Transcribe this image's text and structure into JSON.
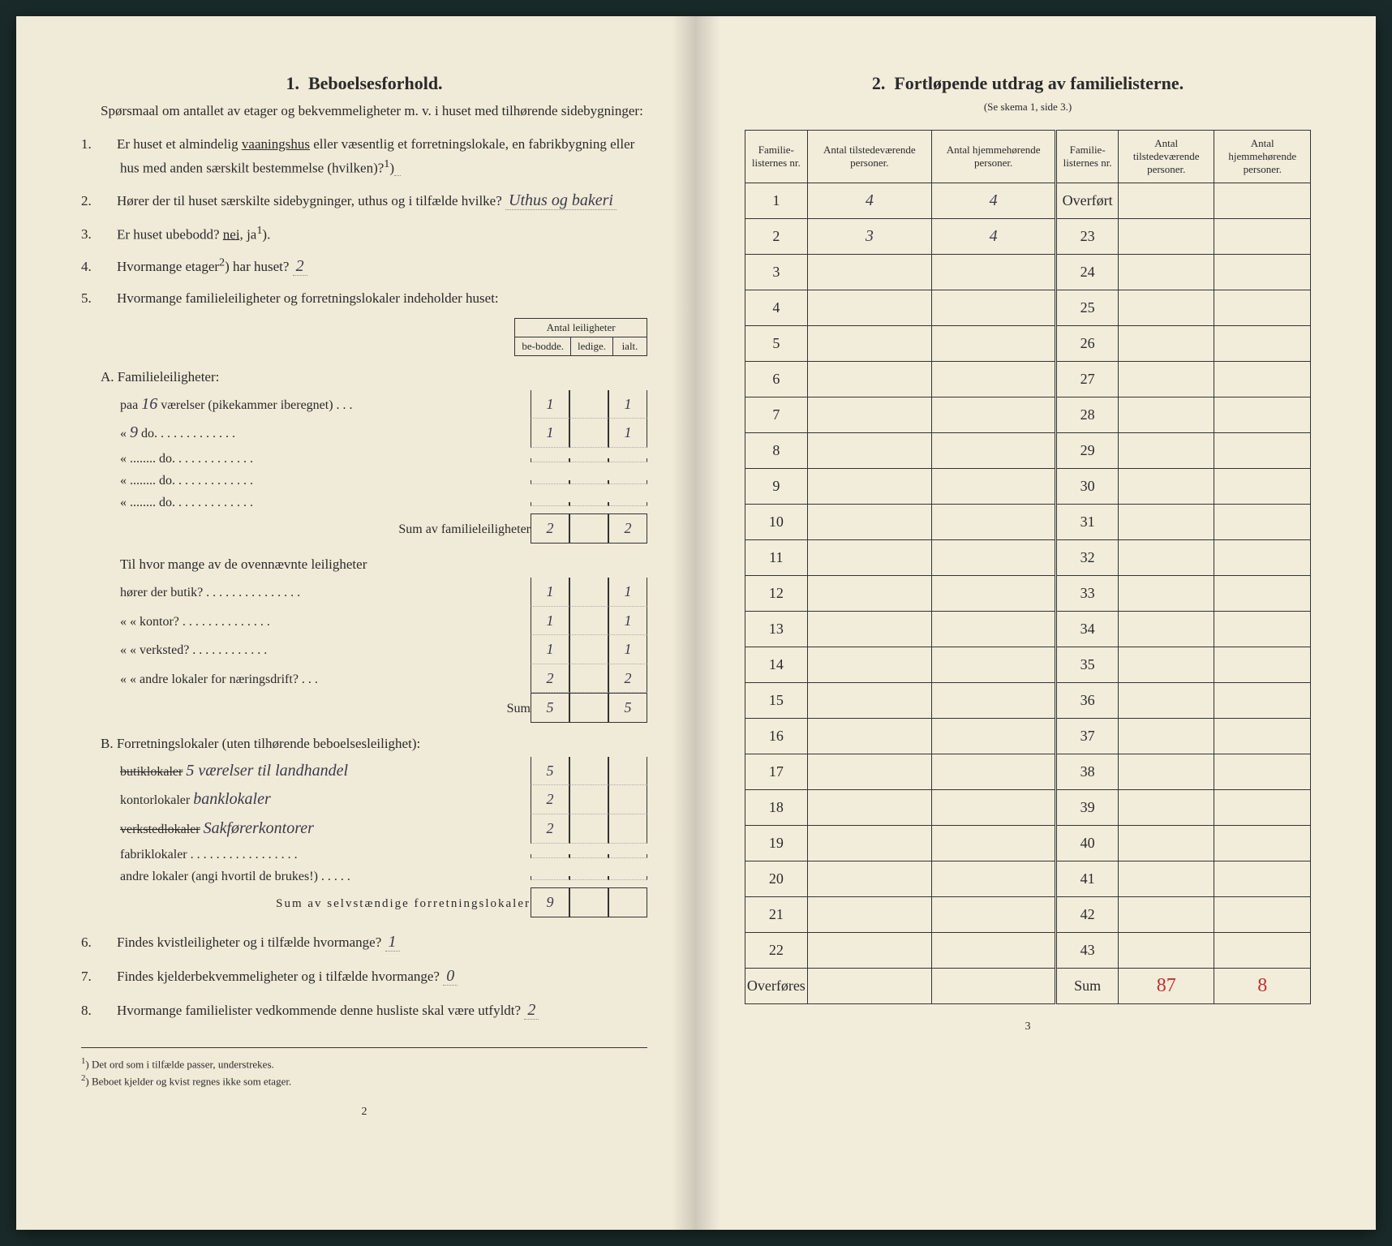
{
  "left": {
    "heading_num": "1.",
    "heading": "Beboelsesforhold.",
    "intro": "Spørsmaal om antallet av etager og bekvemmeligheter m. v. i huset med tilhørende sidebygninger:",
    "q1_num": "1.",
    "q1": "Er huset et almindelig ",
    "q1_underlined": "vaaningshus",
    "q1_rest": " eller væsentlig et forretningslokale, en fabrikbygning eller hus med anden særskilt bestemmelse (hvilken)?",
    "q1_sup": "1",
    "q1_blank": "",
    "q2_num": "2.",
    "q2": "Hører der til huset særskilte sidebygninger, uthus og i tilfælde hvilke?",
    "q2_blank": "Uthus og bakeri",
    "q3_num": "3.",
    "q3": "Er huset ubebodd?",
    "q3_nei": "nei,",
    "q3_ja": "ja",
    "q3_sup": "1",
    "q4_num": "4.",
    "q4": "Hvormange etager",
    "q4_sup": "2",
    "q4_rest": ") har huset?",
    "q4_blank": "2",
    "q5_num": "5.",
    "q5": "Hvormange familieleiligheter og forretningslokaler indeholder huset:",
    "antal_header": "Antal leiligheter",
    "col_bebodde": "be-bodde.",
    "col_ledige": "ledige.",
    "col_ialt": "ialt.",
    "sectA": "A. Familieleiligheter:",
    "rowA1_label": "paa",
    "rowA1_hw": "16",
    "rowA1_rest": "værelser (pikekammer iberegnet) . . .",
    "rowA1": [
      "1",
      "",
      "1"
    ],
    "rowA2_hw": "9",
    "rowA2_rest": "do. . . . . . . . . . . . .",
    "rowA2": [
      "1",
      "",
      "1"
    ],
    "rowA3_rest": "do. . . . . . . . . . . . .",
    "rowA3": [
      "",
      "",
      ""
    ],
    "rowA4_rest": "do. . . . . . . . . . . . .",
    "rowA4": [
      "",
      "",
      ""
    ],
    "rowA5_rest": "do. . . . . . . . . . . . .",
    "rowA5": [
      "",
      "",
      ""
    ],
    "sumA_label": "Sum av familieleiligheter",
    "sumA": [
      "2",
      "",
      "2"
    ],
    "tilhvor": "Til hvor mange av de ovennævnte leiligheter",
    "butik": "hører der butik? . . . . . . . . . . . . . . .",
    "butik_v": [
      "1",
      "",
      "1"
    ],
    "kontor": "« « kontor? . . . . . . . . . . . . . .",
    "kontor_v": [
      "1",
      "",
      "1"
    ],
    "verksted": "« « verksted? . . . . . . . . . . . .",
    "verksted_v": [
      "1",
      "",
      "1"
    ],
    "andre": "« « andre lokaler for næringsdrift? . . .",
    "andre_v": [
      "2",
      "",
      "2"
    ],
    "sum_label": "Sum",
    "sum_v": [
      "5",
      "",
      "5"
    ],
    "sectB": "B. Forretningslokaler (uten tilhørende beboelsesleilighet):",
    "B1_label_strike": "butiklokaler",
    "B1_hw": "5 værelser til landhandel",
    "B1_v": [
      "5",
      "",
      ""
    ],
    "B2_label": "kontorlokaler",
    "B2_hw": "banklokaler",
    "B2_v": [
      "2",
      "",
      ""
    ],
    "B3_label_strike": "verkstedlokaler",
    "B3_hw": "Sakførerkontorer",
    "B3_v": [
      "2",
      "",
      ""
    ],
    "B4_label": "fabriklokaler . . . . . . . . . . . . . . . . .",
    "B4_v": [
      "",
      "",
      ""
    ],
    "B5_label": "andre lokaler (angi hvortil de brukes!) . . . . .",
    "B5_v": [
      "",
      "",
      ""
    ],
    "sumB_label": "Sum av selvstændige forretningslokaler",
    "sumB": [
      "9",
      "",
      ""
    ],
    "q6_num": "6.",
    "q6": "Findes kvistleiligheter og i tilfælde hvormange?",
    "q6_blank": "1",
    "q7_num": "7.",
    "q7": "Findes kjelderbekvemmeligheter og i tilfælde hvormange?",
    "q7_blank": "0",
    "q8_num": "8.",
    "q8": "Hvormange familielister vedkommende denne husliste skal være utfyldt?",
    "q8_blank": "2",
    "fn1_sup": "1",
    "fn1": ") Det ord som i tilfælde passer, understrekes.",
    "fn2_sup": "2",
    "fn2": ") Beboet kjelder og kvist regnes ikke som etager.",
    "pagenum": "2"
  },
  "right": {
    "heading_num": "2.",
    "heading": "Fortløpende utdrag av familielisterne.",
    "subtitle": "(Se skema 1, side 3.)",
    "col1": "Familie-listernes nr.",
    "col2": "Antal tilstedeværende personer.",
    "col3": "Antal hjemmehørende personer.",
    "col4": "Familie-listernes nr.",
    "col5": "Antal tilstedeværende personer.",
    "col6": "Antal hjemmehørende personer.",
    "overfort": "Overført",
    "overfores": "Overføres",
    "sum": "Sum",
    "rows_left": [
      {
        "n": "1",
        "a": "4",
        "b": "4"
      },
      {
        "n": "2",
        "a": "3",
        "b": "4"
      },
      {
        "n": "3",
        "a": "",
        "b": ""
      },
      {
        "n": "4",
        "a": "",
        "b": ""
      },
      {
        "n": "5",
        "a": "",
        "b": ""
      },
      {
        "n": "6",
        "a": "",
        "b": ""
      },
      {
        "n": "7",
        "a": "",
        "b": ""
      },
      {
        "n": "8",
        "a": "",
        "b": ""
      },
      {
        "n": "9",
        "a": "",
        "b": ""
      },
      {
        "n": "10",
        "a": "",
        "b": ""
      },
      {
        "n": "11",
        "a": "",
        "b": ""
      },
      {
        "n": "12",
        "a": "",
        "b": ""
      },
      {
        "n": "13",
        "a": "",
        "b": ""
      },
      {
        "n": "14",
        "a": "",
        "b": ""
      },
      {
        "n": "15",
        "a": "",
        "b": ""
      },
      {
        "n": "16",
        "a": "",
        "b": ""
      },
      {
        "n": "17",
        "a": "",
        "b": ""
      },
      {
        "n": "18",
        "a": "",
        "b": ""
      },
      {
        "n": "19",
        "a": "",
        "b": ""
      },
      {
        "n": "20",
        "a": "",
        "b": ""
      },
      {
        "n": "21",
        "a": "",
        "b": ""
      },
      {
        "n": "22",
        "a": "",
        "b": ""
      }
    ],
    "rows_right_nums": [
      "23",
      "24",
      "25",
      "26",
      "27",
      "28",
      "29",
      "30",
      "31",
      "32",
      "33",
      "34",
      "35",
      "36",
      "37",
      "38",
      "39",
      "40",
      "41",
      "42",
      "43"
    ],
    "sum_a": "87",
    "sum_a_strike": "8",
    "sum_b": "8",
    "pagenum": "3"
  },
  "colors": {
    "paper": "#f0ead8",
    "ink": "#2a2a2a",
    "handwriting": "#3a3a4a",
    "red": "#c03030"
  }
}
